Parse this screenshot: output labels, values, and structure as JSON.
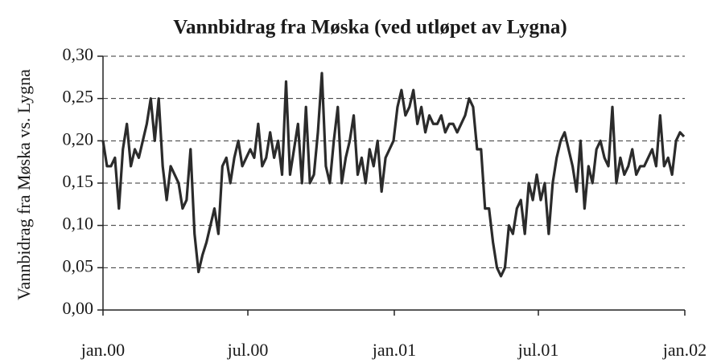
{
  "chart_data": {
    "type": "line",
    "title": "Vannbidrag fra Møska (ved utløpet av Lygna)",
    "y_label": "Vannbidrag fra Møska vs. Lygna",
    "color": "#2b2b2b",
    "grid": true,
    "xlim": [
      0,
      731
    ],
    "xticks": [
      {
        "value": 0,
        "label": "jan.00"
      },
      {
        "value": 182,
        "label": "jul.00"
      },
      {
        "value": 366,
        "label": "jan.01"
      },
      {
        "value": 547,
        "label": "jul.01"
      },
      {
        "value": 731,
        "label": "jan.02"
      }
    ],
    "ylim": [
      0,
      0.3
    ],
    "yticks": [
      {
        "value": 0,
        "label": "0,00"
      },
      {
        "value": 0.05,
        "label": "0,05"
      },
      {
        "value": 0.1,
        "label": "0,10"
      },
      {
        "value": 0.15,
        "label": "0,15"
      },
      {
        "value": 0.2,
        "label": "0,20"
      },
      {
        "value": 0.25,
        "label": "0,25"
      },
      {
        "value": 0.3,
        "label": "0,30"
      }
    ],
    "x": [
      0,
      5,
      10,
      15,
      20,
      25,
      30,
      35,
      40,
      45,
      50,
      55,
      60,
      65,
      70,
      75,
      80,
      85,
      90,
      95,
      100,
      105,
      110,
      115,
      120,
      125,
      130,
      135,
      140,
      145,
      150,
      155,
      160,
      165,
      170,
      175,
      180,
      185,
      190,
      195,
      200,
      205,
      210,
      215,
      220,
      225,
      230,
      235,
      240,
      245,
      250,
      255,
      260,
      265,
      270,
      275,
      280,
      285,
      290,
      295,
      300,
      305,
      310,
      315,
      320,
      325,
      330,
      335,
      340,
      345,
      350,
      355,
      360,
      365,
      370,
      375,
      380,
      385,
      390,
      395,
      400,
      405,
      410,
      415,
      420,
      425,
      430,
      435,
      440,
      445,
      450,
      455,
      460,
      465,
      470,
      475,
      480,
      485,
      490,
      495,
      500,
      505,
      510,
      515,
      520,
      525,
      530,
      535,
      540,
      545,
      550,
      555,
      560,
      565,
      570,
      575,
      580,
      585,
      590,
      595,
      600,
      605,
      610,
      615,
      620,
      625,
      630,
      635,
      640,
      645,
      650,
      655,
      660,
      665,
      670,
      675,
      680,
      685,
      690,
      695,
      700,
      705,
      710,
      715,
      720,
      725,
      730
    ],
    "values": [
      0.2,
      0.17,
      0.17,
      0.18,
      0.12,
      0.19,
      0.22,
      0.17,
      0.19,
      0.18,
      0.2,
      0.22,
      0.25,
      0.2,
      0.25,
      0.17,
      0.13,
      0.17,
      0.16,
      0.15,
      0.12,
      0.13,
      0.19,
      0.09,
      0.045,
      0.065,
      0.08,
      0.1,
      0.12,
      0.09,
      0.17,
      0.18,
      0.15,
      0.18,
      0.2,
      0.17,
      0.18,
      0.19,
      0.18,
      0.22,
      0.17,
      0.18,
      0.21,
      0.18,
      0.2,
      0.16,
      0.27,
      0.16,
      0.19,
      0.22,
      0.15,
      0.24,
      0.15,
      0.16,
      0.21,
      0.28,
      0.17,
      0.15,
      0.2,
      0.24,
      0.15,
      0.18,
      0.2,
      0.23,
      0.16,
      0.18,
      0.15,
      0.19,
      0.17,
      0.2,
      0.14,
      0.18,
      0.19,
      0.2,
      0.24,
      0.26,
      0.23,
      0.24,
      0.26,
      0.22,
      0.24,
      0.21,
      0.23,
      0.22,
      0.22,
      0.23,
      0.21,
      0.22,
      0.22,
      0.21,
      0.22,
      0.23,
      0.25,
      0.24,
      0.19,
      0.19,
      0.12,
      0.12,
      0.08,
      0.05,
      0.04,
      0.05,
      0.1,
      0.09,
      0.12,
      0.13,
      0.09,
      0.15,
      0.13,
      0.16,
      0.13,
      0.15,
      0.09,
      0.15,
      0.18,
      0.2,
      0.21,
      0.19,
      0.17,
      0.14,
      0.2,
      0.12,
      0.17,
      0.15,
      0.19,
      0.2,
      0.18,
      0.17,
      0.24,
      0.15,
      0.18,
      0.16,
      0.17,
      0.19,
      0.16,
      0.17,
      0.17,
      0.18,
      0.19,
      0.17,
      0.23,
      0.17,
      0.18,
      0.16,
      0.2,
      0.21,
      0.205
    ]
  }
}
